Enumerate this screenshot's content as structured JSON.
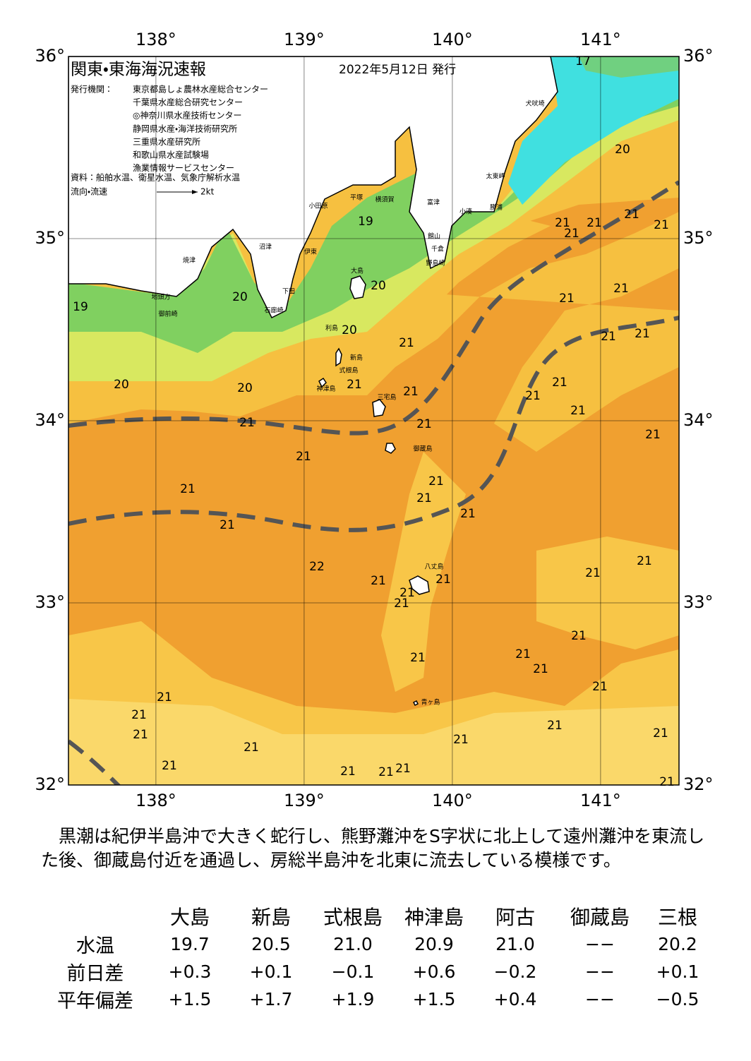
{
  "header": {
    "title": "関東・東海海況速報",
    "date": "2022年5月12日 発行",
    "issuer_label": "発行機関：",
    "issuers": [
      "東京都島しょ農林水産総合センター",
      "千葉県水産総合研究センター",
      "◎神奈川県水産技術センター",
      "静岡県水産・海洋技術研究所",
      "三重県水産研究所",
      "和歌山県水産試験場",
      "漁業情報サービスセンター"
    ],
    "source": "資料：船舶水温、衛星水温、気象庁解析水温",
    "current_legend": "流向・流速",
    "current_scale": "2kt"
  },
  "map": {
    "lon_ticks": [
      {
        "value": 138,
        "label": "138°"
      },
      {
        "value": 139,
        "label": "139°"
      },
      {
        "value": 140,
        "label": "140°"
      },
      {
        "value": 141,
        "label": "141°"
      }
    ],
    "lat_ticks": [
      {
        "value": 36,
        "label": "36°"
      },
      {
        "value": 35,
        "label": "35°"
      },
      {
        "value": 34,
        "label": "34°"
      },
      {
        "value": 33,
        "label": "33°"
      },
      {
        "value": 32,
        "label": "32°"
      }
    ],
    "temperature_labels": [
      "17",
      "20",
      "21",
      "21",
      "21",
      "21",
      "21",
      "21",
      "21",
      "21",
      "21",
      "21",
      "21",
      "21",
      "21",
      "19",
      "20",
      "20",
      "19",
      "20",
      "21",
      "20",
      "20",
      "21",
      "21",
      "21",
      "21",
      "21",
      "21",
      "21",
      "21",
      "21",
      "21",
      "22",
      "21",
      "21",
      "21",
      "21",
      "21",
      "21",
      "21",
      "21",
      "21",
      "21",
      "21",
      "21",
      "21",
      "21",
      "21",
      "21",
      "21",
      "21",
      "21",
      "21",
      "21",
      "21",
      "21"
    ],
    "place_names": [
      "犬吠埼",
      "太東岬",
      "小田原",
      "平塚",
      "横須賀",
      "富津",
      "勝浦",
      "小湊",
      "館山",
      "千倉",
      "野島崎",
      "大島",
      "下田",
      "石廊崎",
      "焼津",
      "御前崎",
      "地頭方",
      "伊東",
      "沼津",
      "利島",
      "新島",
      "式根島",
      "神津島",
      "三宅島",
      "御蔵島",
      "八丈島",
      "青ヶ島"
    ]
  },
  "summary": "黒潮は紀伊半島沖で大きく蛇行し、熊野灘沖をS字状に北上して遠州灘沖を東流した後、御蔵島付近を通過し、房総半島沖を北東に流去している模様です。",
  "table": {
    "columns": [
      "大島",
      "新島",
      "式根島",
      "神津島",
      "阿古",
      "御蔵島",
      "三根"
    ],
    "rows": [
      {
        "label": "水温",
        "values": [
          "19.7",
          "20.5",
          "21.0",
          "20.9",
          "21.0",
          "−−",
          "20.2"
        ]
      },
      {
        "label": "前日差",
        "values": [
          "+0.3",
          "+0.1",
          "−0.1",
          "+0.6",
          "−0.2",
          "−−",
          "+0.1"
        ]
      },
      {
        "label": "平年偏差",
        "values": [
          "+1.5",
          "+1.7",
          "+1.9",
          "+1.5",
          "+0.4",
          "−−",
          "−0.5"
        ]
      }
    ]
  }
}
